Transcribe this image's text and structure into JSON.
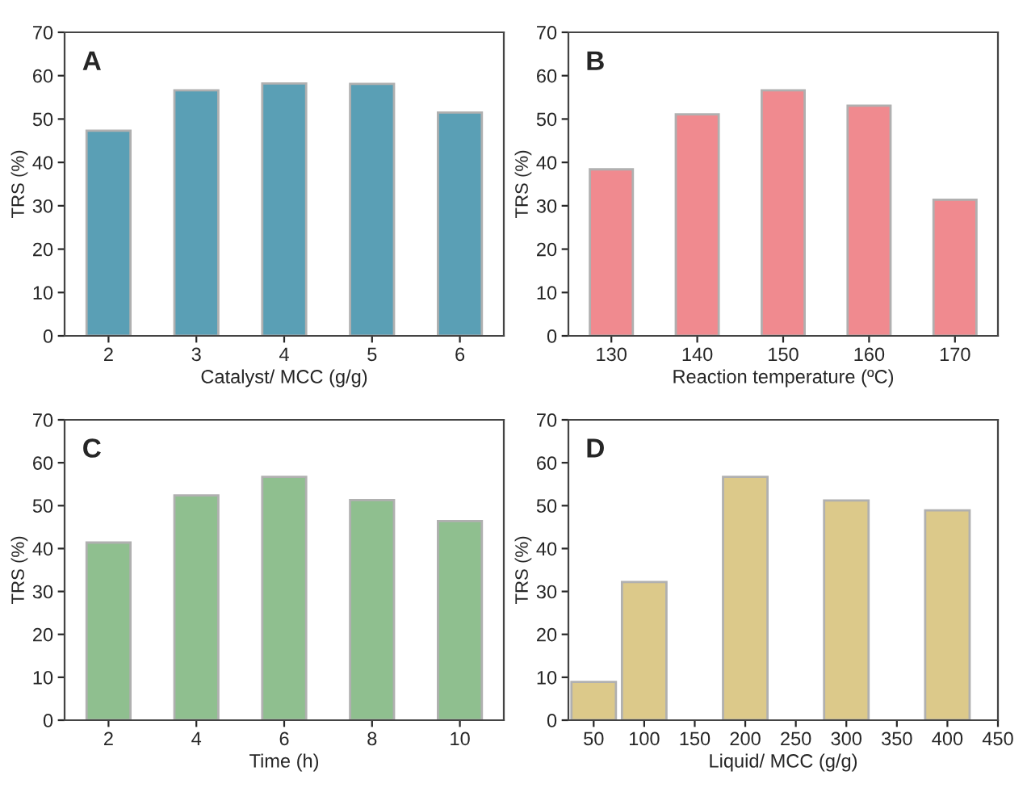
{
  "chart_data": [
    {
      "type": "bar",
      "title": "A",
      "xlabel": "Catalyst/ MCC (g/g)",
      "ylabel": "TRS (%)",
      "categories": [
        "2",
        "3",
        "4",
        "5",
        "6"
      ],
      "values": [
        47.3,
        56.6,
        58.2,
        58.1,
        51.5
      ],
      "color": "#5a9fb5",
      "ylim": [
        0,
        70
      ],
      "yticks": [
        0,
        10,
        20,
        30,
        40,
        50,
        60,
        70
      ],
      "grid": false,
      "legend": false
    },
    {
      "type": "bar",
      "title": "B",
      "xlabel": "Reaction temperature (ºC)",
      "ylabel": "TRS (%)",
      "categories": [
        "130",
        "140",
        "150",
        "160",
        "170"
      ],
      "values": [
        38.4,
        51.1,
        56.6,
        53.1,
        31.4
      ],
      "color": "#f08a8f",
      "ylim": [
        0,
        70
      ],
      "yticks": [
        0,
        10,
        20,
        30,
        40,
        50,
        60,
        70
      ],
      "grid": false,
      "legend": false
    },
    {
      "type": "bar",
      "title": "C",
      "xlabel": "Time (h)",
      "ylabel": "TRS (%)",
      "categories": [
        "2",
        "4",
        "6",
        "8",
        "10"
      ],
      "values": [
        41.4,
        52.4,
        56.7,
        51.3,
        46.4
      ],
      "color": "#8fbf8f",
      "ylim": [
        0,
        70
      ],
      "yticks": [
        0,
        10,
        20,
        30,
        40,
        50,
        60,
        70
      ],
      "grid": false,
      "legend": false
    },
    {
      "type": "bar",
      "title": "D",
      "xlabel": "Liquid/ MCC (g/g)",
      "ylabel": "TRS (%)",
      "x": [
        50,
        100,
        200,
        300,
        400
      ],
      "values": [
        8.9,
        32.2,
        56.7,
        51.2,
        48.9
      ],
      "color": "#dcc98a",
      "xlim": [
        25,
        450
      ],
      "xticks": [
        50,
        100,
        150,
        200,
        250,
        300,
        350,
        400,
        450
      ],
      "ylim": [
        0,
        70
      ],
      "yticks": [
        0,
        10,
        20,
        30,
        40,
        50,
        60,
        70
      ],
      "grid": false,
      "legend": false
    }
  ]
}
